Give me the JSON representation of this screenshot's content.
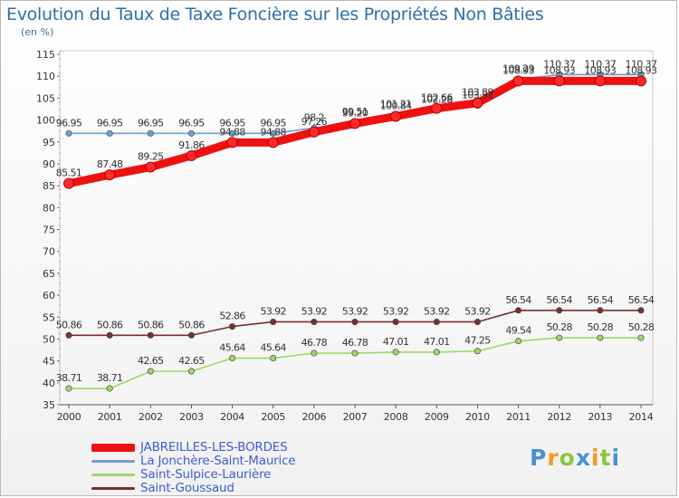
{
  "chart_data": {
    "type": "line",
    "title": "Evolution du Taux de Taxe Foncière sur les Propriétés Non Bâties",
    "subtitle": "(en %)",
    "x": [
      "2000",
      "2001",
      "2002",
      "2003",
      "2004",
      "2005",
      "2006",
      "2007",
      "2008",
      "2009",
      "2010",
      "2011",
      "2012",
      "2013",
      "2014"
    ],
    "ylim": [
      35,
      115
    ],
    "yticks": [
      35,
      40,
      45,
      50,
      55,
      60,
      65,
      70,
      75,
      80,
      85,
      90,
      95,
      100,
      105,
      110,
      115
    ],
    "grid": false,
    "legend_position": "bottom-left",
    "series": [
      {
        "name": "JABREILLES-LES-BORDES",
        "color": "#ee1111",
        "values": [
          85.51,
          87.48,
          89.25,
          91.86,
          94.88,
          94.88,
          97.26,
          99.2,
          100.84,
          102.66,
          103.89,
          108.93,
          108.93,
          108.93,
          108.93
        ],
        "labels": [
          "85.51",
          "87.48",
          "89.25",
          "91.86",
          "94.88",
          "94.88",
          "97.26",
          "99.20",
          "100.84",
          "102.66",
          "103.89",
          "108.93",
          "108.93",
          "108.93",
          "108.93"
        ]
      },
      {
        "name": "La Jonchère-Saint-Maurice",
        "color": "#6f9fd1",
        "values": [
          96.95,
          96.95,
          96.95,
          96.95,
          96.95,
          96.95,
          98.2,
          99.51,
          101.21,
          102.28,
          103.31,
          109.29,
          110.37,
          110.37,
          110.37
        ],
        "labels": [
          "96.95",
          "96.95",
          "96.95",
          "96.95",
          "96.95",
          "96.95",
          "98.2",
          "99.51",
          "101.21",
          "102.28",
          "103.31",
          "109.29",
          "110.37",
          "110.37",
          "110.37"
        ]
      },
      {
        "name": "Saint-Sulpice-Laurière",
        "color": "#9bd86a",
        "values": [
          38.71,
          38.71,
          42.65,
          42.65,
          45.64,
          45.64,
          46.78,
          46.78,
          47.01,
          47.01,
          47.25,
          49.54,
          50.28,
          50.28,
          50.28
        ],
        "labels": [
          "38.71",
          "38.71",
          "42.65",
          "42.65",
          "45.64",
          "45.64",
          "46.78",
          "46.78",
          "47.01",
          "47.01",
          "47.25",
          "49.54",
          "50.28",
          "50.28",
          "50.28"
        ]
      },
      {
        "name": "Saint-Goussaud",
        "color": "#7a2f2f",
        "values": [
          50.86,
          50.86,
          50.86,
          50.86,
          52.86,
          53.92,
          53.92,
          53.92,
          53.92,
          53.92,
          53.92,
          56.54,
          56.54,
          56.54,
          56.54
        ],
        "labels": [
          "50.86",
          "50.86",
          "50.86",
          "50.86",
          "52.86",
          "53.92",
          "53.92",
          "53.92",
          "53.92",
          "53.92",
          "53.92",
          "56.54",
          "56.54",
          "56.54",
          "56.54"
        ]
      }
    ]
  },
  "legend": [
    {
      "label": "JABREILLES-LES-BORDES",
      "color": "#ee1111"
    },
    {
      "label": "La Jonchère-Saint-Maurice",
      "color": "#6f9fd1"
    },
    {
      "label": "Saint-Sulpice-Laurière",
      "color": "#9bd86a"
    },
    {
      "label": "Saint-Goussaud",
      "color": "#7a2f2f"
    }
  ],
  "brand": {
    "letters": [
      "P",
      "r",
      "o",
      "x",
      "i",
      "t",
      "i"
    ],
    "colors": [
      "#4a8fd6",
      "#f29a1c",
      "#8cc63f",
      "#4a8fd6",
      "#f29a1c",
      "#8cc63f",
      "#4a8fd6"
    ]
  }
}
